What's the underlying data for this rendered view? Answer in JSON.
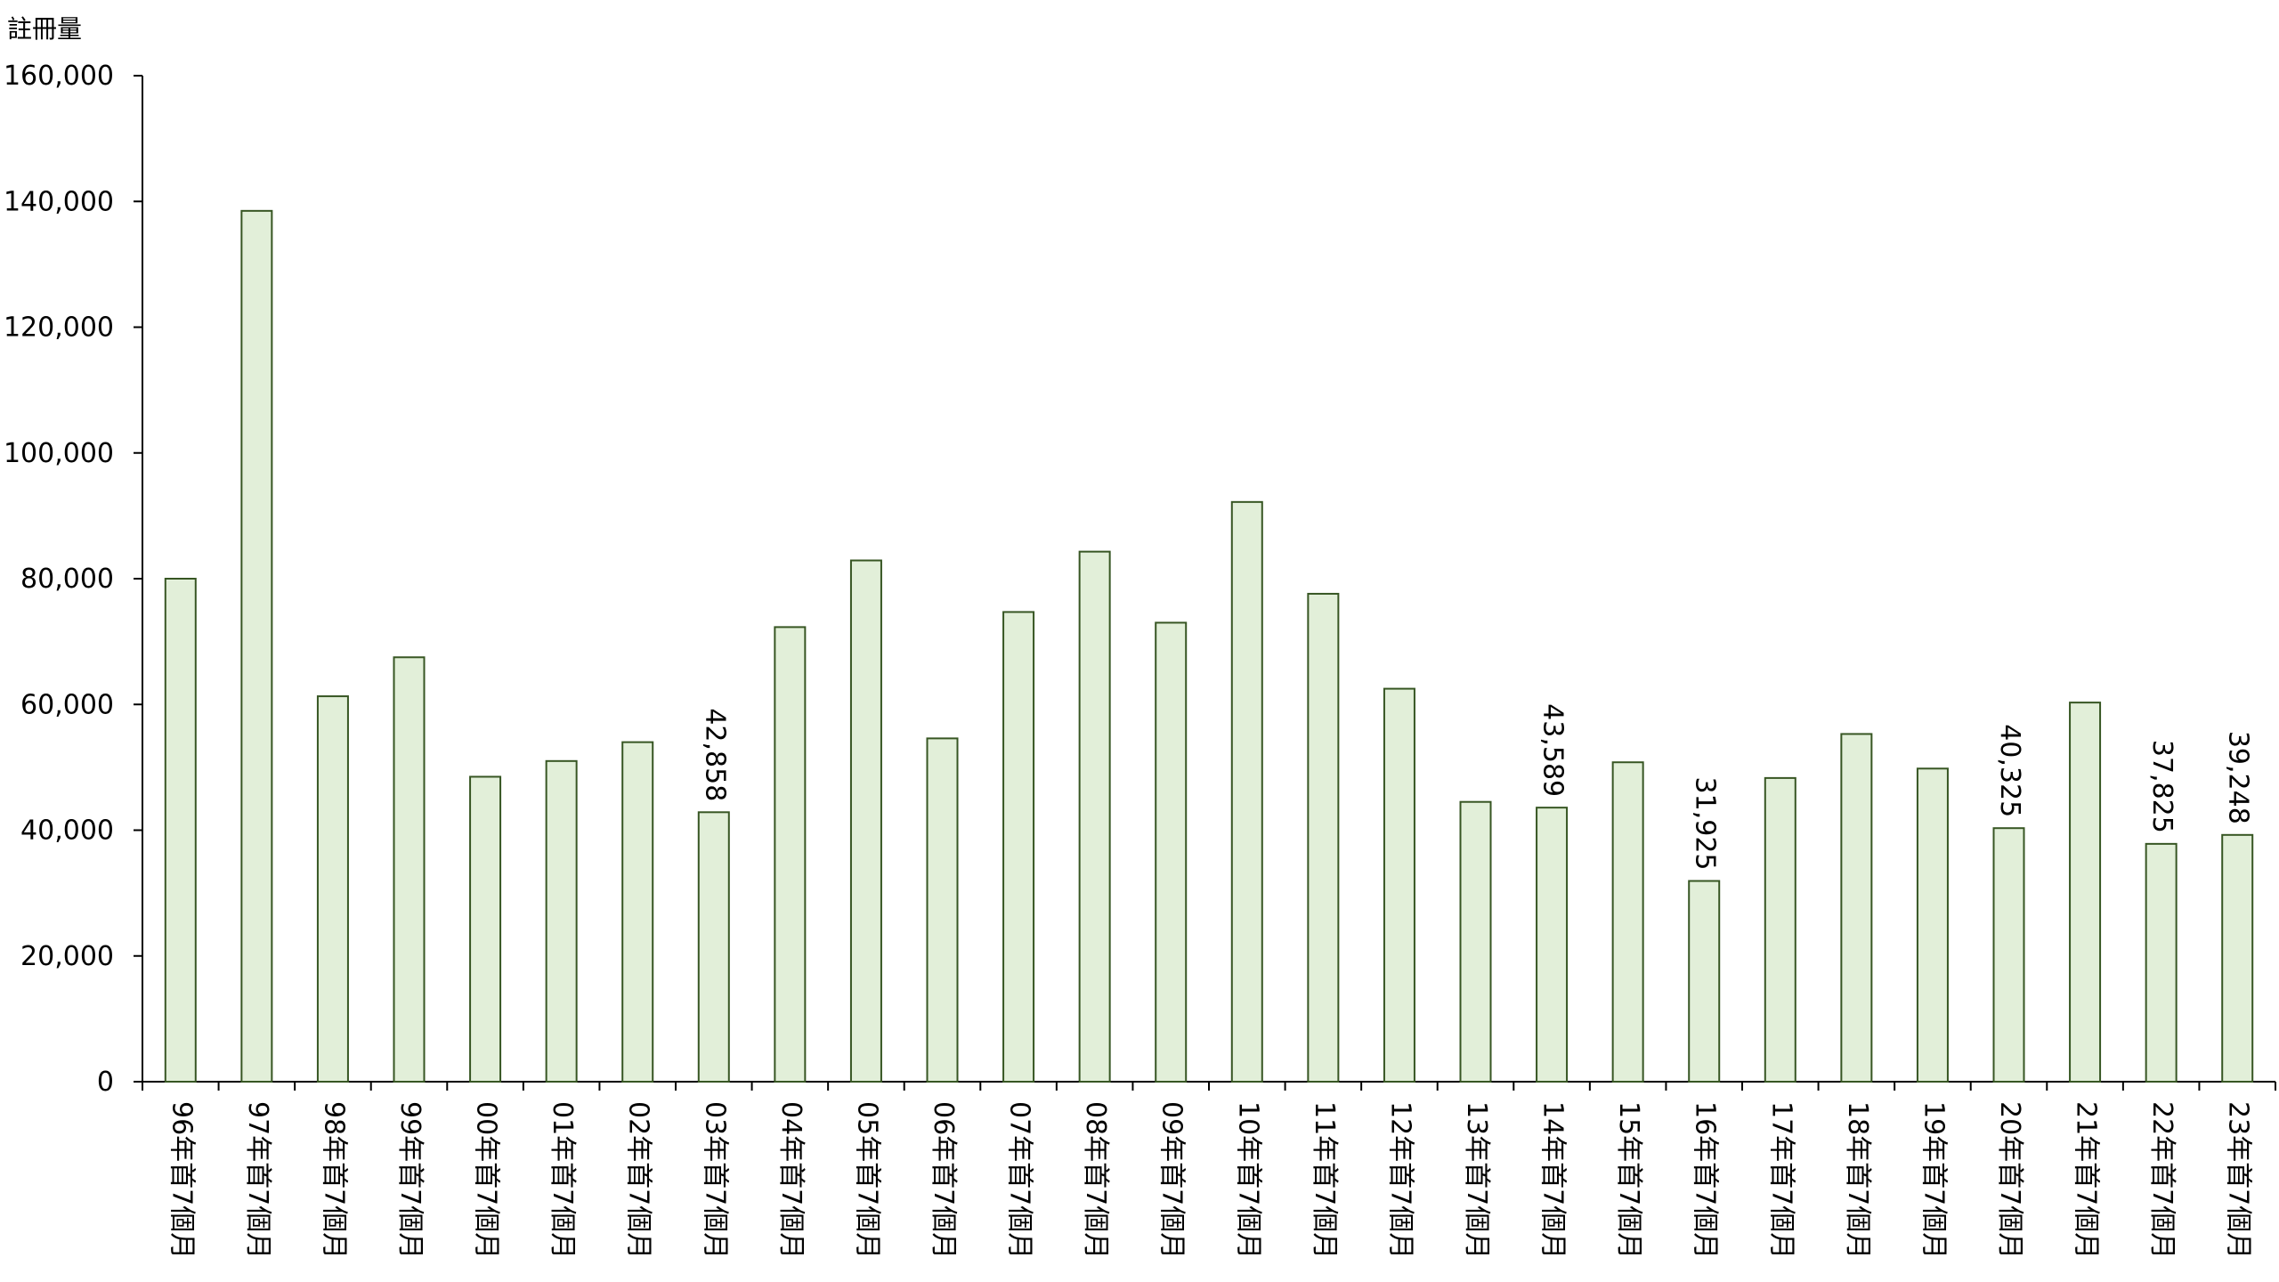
{
  "chart_data": {
    "type": "bar",
    "ylabel": "註冊量",
    "xlabel": "",
    "ylim": [
      0,
      160000
    ],
    "yticks": [
      "0",
      "20,000",
      "40,000",
      "60,000",
      "80,000",
      "100,000",
      "120,000",
      "140,000",
      "160,000"
    ],
    "grid": false,
    "bar_fill": "#e2efd9",
    "bar_stroke": "#375623",
    "categories": [
      "96年首7個月",
      "97年首7個月",
      "98年首7個月",
      "99年首7個月",
      "00年首7個月",
      "01年首7個月",
      "02年首7個月",
      "03年首7個月",
      "04年首7個月",
      "05年首7個月",
      "06年首7個月",
      "07年首7個月",
      "08年首7個月",
      "09年首7個月",
      "10年首7個月",
      "11年首7個月",
      "12年首7個月",
      "13年首7個月",
      "14年首7個月",
      "15年首7個月",
      "16年首7個月",
      "17年首7個月",
      "18年首7個月",
      "19年首7個月",
      "20年首7個月",
      "21年首7個月",
      "22年首7個月",
      "23年首7個月"
    ],
    "values": [
      80000,
      138500,
      61300,
      67500,
      48500,
      51000,
      54000,
      42858,
      72300,
      82900,
      54600,
      74700,
      84300,
      73000,
      92200,
      77600,
      62500,
      44500,
      43589,
      50800,
      31925,
      48300,
      55300,
      49800,
      40325,
      60300,
      37825,
      39248
    ],
    "data_labels": [
      {
        "index": 7,
        "text": "42,858"
      },
      {
        "index": 18,
        "text": "43,589"
      },
      {
        "index": 20,
        "text": "31,925"
      },
      {
        "index": 24,
        "text": "40,325"
      },
      {
        "index": 26,
        "text": "37,825"
      },
      {
        "index": 27,
        "text": "39,248"
      }
    ]
  }
}
